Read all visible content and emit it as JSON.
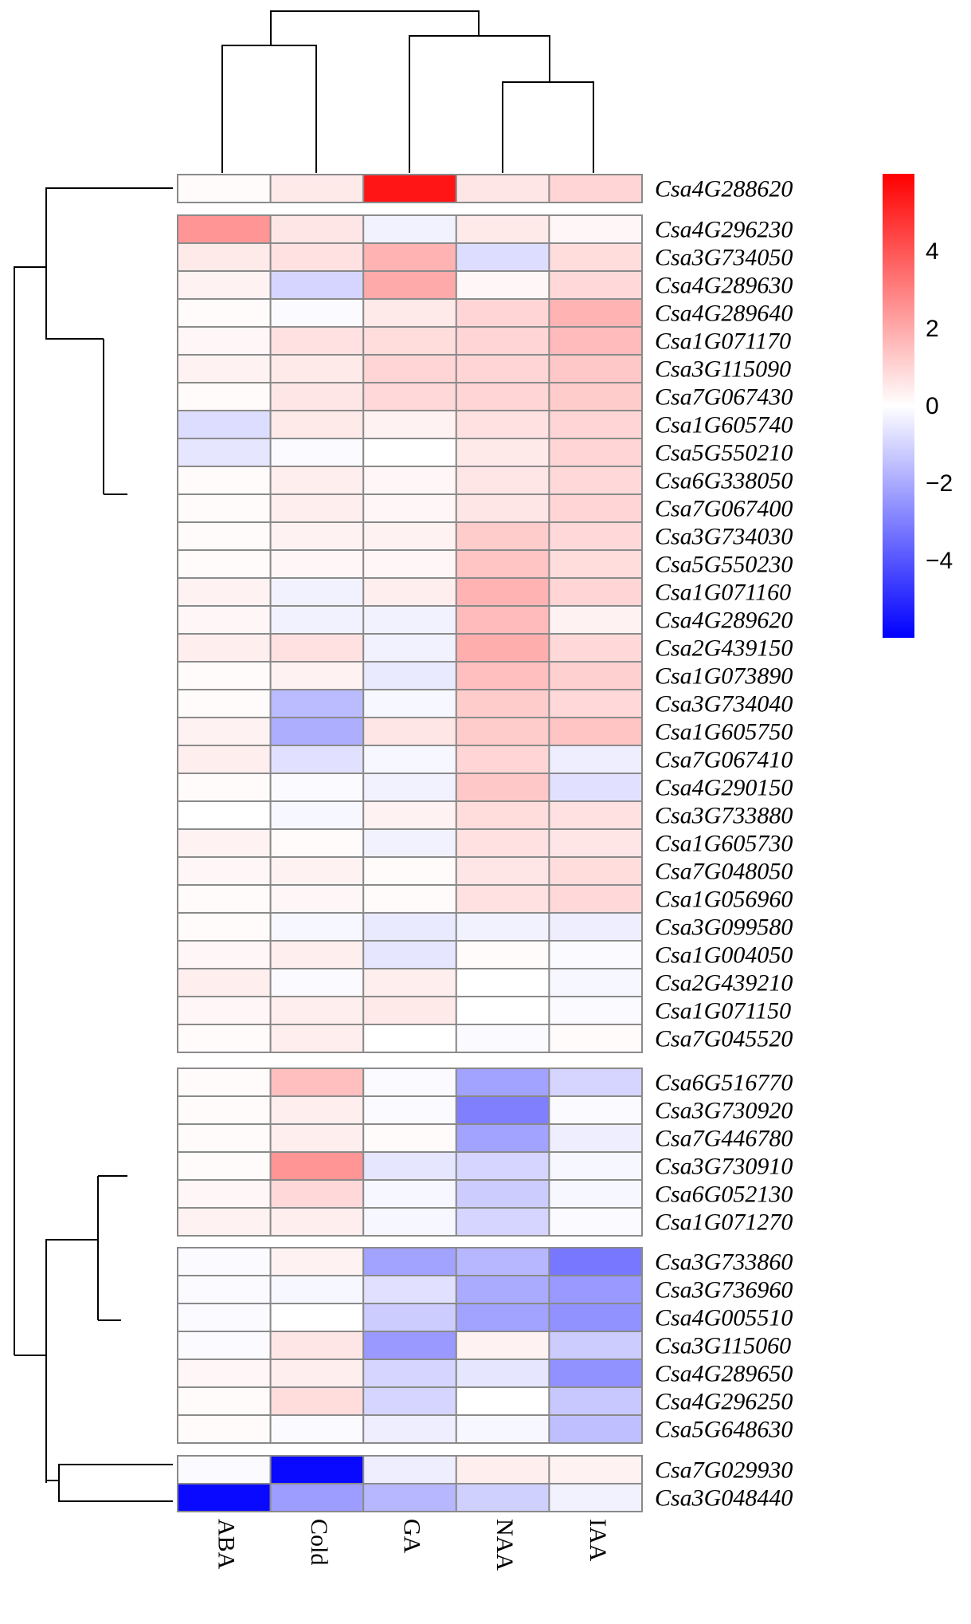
{
  "chart_data": {
    "type": "heatmap",
    "title": "",
    "columns": [
      "ABA",
      "Cold",
      "GA",
      "NAA",
      "IAA"
    ],
    "rows": [
      {
        "gene": "Csa4G288620",
        "values": [
          0.1,
          0.5,
          5.5,
          0.6,
          1.0
        ]
      },
      {
        "gene": "Csa4G296230",
        "values": [
          2.5,
          0.6,
          -0.3,
          0.5,
          0.2
        ]
      },
      {
        "gene": "Csa3G734050",
        "values": [
          0.5,
          0.7,
          1.8,
          -0.8,
          0.8
        ]
      },
      {
        "gene": "Csa4G289630",
        "values": [
          0.3,
          -1.0,
          2.0,
          0.2,
          0.9
        ]
      },
      {
        "gene": "Csa4G289640",
        "values": [
          0.1,
          -0.1,
          0.5,
          1.0,
          1.8
        ]
      },
      {
        "gene": "Csa1G071170",
        "values": [
          0.2,
          0.7,
          0.8,
          1.0,
          1.6
        ]
      },
      {
        "gene": "Csa3G115090",
        "values": [
          0.3,
          0.5,
          1.0,
          1.0,
          1.3
        ]
      },
      {
        "gene": "Csa7G067430",
        "values": [
          0.1,
          0.6,
          0.9,
          1.0,
          1.2
        ]
      },
      {
        "gene": "Csa1G605740",
        "values": [
          -0.8,
          0.5,
          0.3,
          0.7,
          1.0
        ]
      },
      {
        "gene": "Csa5G550210",
        "values": [
          -0.6,
          -0.1,
          0.0,
          0.5,
          1.0
        ]
      },
      {
        "gene": "Csa6G338050",
        "values": [
          0.1,
          0.4,
          0.2,
          0.6,
          0.9
        ]
      },
      {
        "gene": "Csa7G067400",
        "values": [
          0.1,
          0.4,
          0.2,
          0.6,
          1.0
        ]
      },
      {
        "gene": "Csa3G734030",
        "values": [
          0.1,
          0.3,
          0.3,
          1.2,
          0.9
        ]
      },
      {
        "gene": "Csa5G550230",
        "values": [
          0.1,
          0.2,
          0.2,
          1.4,
          0.8
        ]
      },
      {
        "gene": "Csa1G071160",
        "values": [
          0.3,
          -0.3,
          0.4,
          1.8,
          1.0
        ]
      },
      {
        "gene": "Csa4G289620",
        "values": [
          0.2,
          -0.3,
          -0.3,
          1.6,
          0.3
        ]
      },
      {
        "gene": "Csa2G439150",
        "values": [
          0.4,
          0.7,
          -0.3,
          1.9,
          0.9
        ]
      },
      {
        "gene": "Csa1G073890",
        "values": [
          0.1,
          0.3,
          -0.5,
          1.5,
          1.1
        ]
      },
      {
        "gene": "Csa3G734040",
        "values": [
          0.1,
          -1.6,
          -0.2,
          1.2,
          0.9
        ]
      },
      {
        "gene": "Csa1G605750",
        "values": [
          0.3,
          -1.9,
          0.6,
          1.2,
          1.4
        ]
      },
      {
        "gene": "Csa7G067410",
        "values": [
          0.4,
          -0.7,
          -0.2,
          1.0,
          -0.4
        ]
      },
      {
        "gene": "Csa4G290150",
        "values": [
          0.1,
          -0.1,
          -0.3,
          1.3,
          -0.7
        ]
      },
      {
        "gene": "Csa3G733880",
        "values": [
          0.0,
          -0.2,
          0.3,
          0.8,
          0.7
        ]
      },
      {
        "gene": "Csa1G605730",
        "values": [
          0.3,
          0.1,
          -0.3,
          0.7,
          0.6
        ]
      },
      {
        "gene": "Csa7G048050",
        "values": [
          0.2,
          0.3,
          0.1,
          0.6,
          0.8
        ]
      },
      {
        "gene": "Csa1G056960",
        "values": [
          0.1,
          0.2,
          0.1,
          0.7,
          0.9
        ]
      },
      {
        "gene": "Csa3G099580",
        "values": [
          0.1,
          -0.2,
          -0.5,
          -0.3,
          -0.4
        ]
      },
      {
        "gene": "Csa1G004050",
        "values": [
          0.2,
          0.4,
          -0.6,
          0.1,
          -0.1
        ]
      },
      {
        "gene": "Csa2G439210",
        "values": [
          0.4,
          -0.1,
          0.4,
          0.0,
          -0.2
        ]
      },
      {
        "gene": "Csa1G071150",
        "values": [
          0.2,
          0.4,
          0.5,
          0.0,
          -0.1
        ]
      },
      {
        "gene": "Csa7G045520",
        "values": [
          0.1,
          0.4,
          0.0,
          -0.1,
          0.1
        ]
      },
      {
        "gene": "Csa6G516770",
        "values": [
          0.1,
          1.5,
          -0.1,
          -2.2,
          -1.0
        ]
      },
      {
        "gene": "Csa3G730920",
        "values": [
          0.1,
          0.4,
          -0.1,
          -3.0,
          -0.1
        ]
      },
      {
        "gene": "Csa7G446780",
        "values": [
          0.1,
          0.4,
          0.1,
          -2.2,
          -0.4
        ]
      },
      {
        "gene": "Csa3G730910",
        "values": [
          0.1,
          2.5,
          -0.6,
          -1.0,
          -0.2
        ]
      },
      {
        "gene": "Csa6G052130",
        "values": [
          0.2,
          0.9,
          -0.2,
          -1.2,
          -0.2
        ]
      },
      {
        "gene": "Csa1G071270",
        "values": [
          0.3,
          0.4,
          -0.2,
          -1.0,
          -0.1
        ]
      },
      {
        "gene": "Csa3G733860",
        "values": [
          -0.1,
          0.3,
          -2.2,
          -1.7,
          -3.2
        ]
      },
      {
        "gene": "Csa3G736960",
        "values": [
          -0.1,
          -0.2,
          -0.7,
          -2.0,
          -2.4
        ]
      },
      {
        "gene": "Csa4G005510",
        "values": [
          -0.1,
          0.0,
          -1.2,
          -2.2,
          -2.6
        ]
      },
      {
        "gene": "Csa3G115060",
        "values": [
          -0.1,
          0.6,
          -2.4,
          0.3,
          -1.2
        ]
      },
      {
        "gene": "Csa4G289650",
        "values": [
          0.2,
          0.4,
          -1.0,
          -0.6,
          -2.6
        ]
      },
      {
        "gene": "Csa4G296250",
        "values": [
          0.1,
          0.8,
          -1.0,
          0.0,
          -1.3
        ]
      },
      {
        "gene": "Csa5G648630",
        "values": [
          0.1,
          -0.1,
          -0.4,
          -0.2,
          -1.5
        ]
      },
      {
        "gene": "Csa7G029930",
        "values": [
          -0.1,
          -5.8,
          -0.4,
          0.4,
          0.3
        ]
      },
      {
        "gene": "Csa3G048440",
        "values": [
          -5.8,
          -2.3,
          -1.7,
          -1.1,
          -0.3
        ]
      }
    ],
    "row_groups": [
      {
        "start": 0,
        "count": 1
      },
      {
        "start": 1,
        "count": 30
      },
      {
        "start": 31,
        "count": 6
      },
      {
        "start": 37,
        "count": 7
      },
      {
        "start": 44,
        "count": 2
      }
    ],
    "color_scale": {
      "min": -6,
      "max": 6,
      "low_color": "#0000ff",
      "mid_color": "#ffffff",
      "high_color": "#ff0000",
      "ticks": [
        4,
        2,
        0,
        -2,
        -4
      ],
      "tick_labels": [
        "4",
        "2",
        "0",
        "−2",
        "−4"
      ]
    }
  }
}
